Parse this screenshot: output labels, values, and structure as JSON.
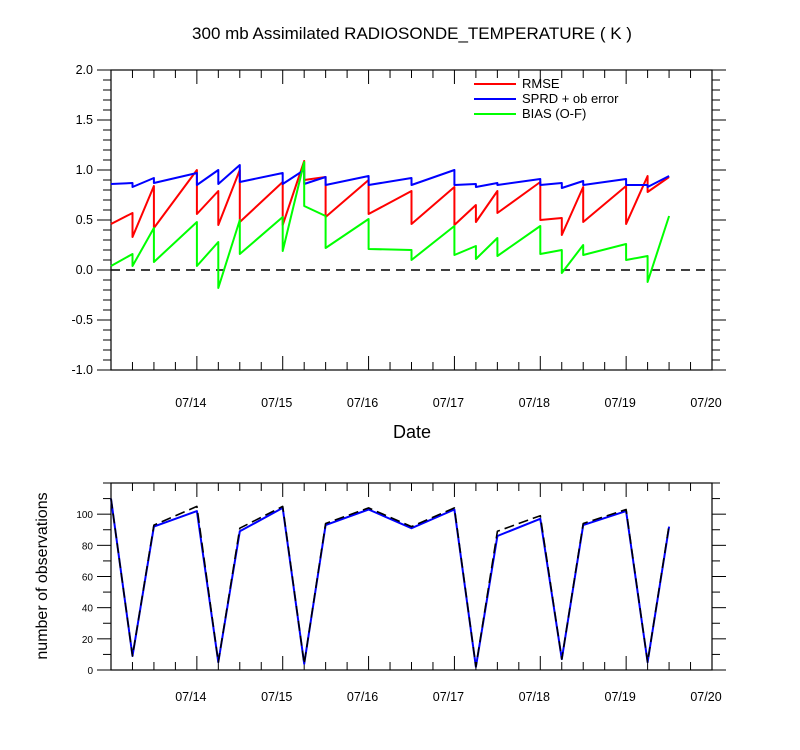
{
  "chart_data": [
    {
      "type": "line",
      "title": "300 mb Assimilated RADIOSONDE_TEMPERATURE ( K )",
      "xlabel": "Date",
      "ylabel": "",
      "x_tick_labels": [
        "07/14",
        "07/15",
        "07/16",
        "07/17",
        "07/18",
        "07/19",
        "07/20"
      ],
      "x_tick_positions_day": [
        14,
        15,
        16,
        17,
        18,
        19,
        20
      ],
      "xlim_day": [
        13.0,
        20.0
      ],
      "ylim": [
        -1.0,
        2.0
      ],
      "y_tick_labels": [
        "2.0",
        "1.5",
        "1.0",
        "0.5",
        "0.0",
        "-0.5",
        "-1.0"
      ],
      "y_tick_values": [
        2.0,
        1.5,
        1.0,
        0.5,
        0.0,
        -0.5,
        -1.0
      ],
      "zero_line": "dashed",
      "legend_position": "top-right",
      "series": [
        {
          "name": "RMSE",
          "color": "#ff0000",
          "points": [
            [
              13.0,
              0.46
            ],
            [
              13.25,
              0.57
            ],
            [
              13.25,
              0.33
            ],
            [
              13.5,
              0.84
            ],
            [
              13.5,
              0.42
            ],
            [
              14.0,
              1.0
            ],
            [
              14.0,
              0.56
            ],
            [
              14.25,
              0.79
            ],
            [
              14.25,
              0.45
            ],
            [
              14.5,
              1.0
            ],
            [
              14.5,
              0.48
            ],
            [
              15.0,
              0.88
            ],
            [
              15.0,
              0.45
            ],
            [
              15.25,
              1.09
            ],
            [
              15.25,
              0.9
            ],
            [
              15.5,
              0.93
            ],
            [
              15.5,
              0.53
            ],
            [
              16.0,
              0.9
            ],
            [
              16.0,
              0.56
            ],
            [
              16.5,
              0.79
            ],
            [
              16.5,
              0.46
            ],
            [
              17.0,
              0.83
            ],
            [
              17.0,
              0.45
            ],
            [
              17.25,
              0.65
            ],
            [
              17.25,
              0.48
            ],
            [
              17.5,
              0.79
            ],
            [
              17.5,
              0.57
            ],
            [
              18.0,
              0.88
            ],
            [
              18.0,
              0.5
            ],
            [
              18.25,
              0.52
            ],
            [
              18.25,
              0.35
            ],
            [
              18.5,
              0.83
            ],
            [
              18.5,
              0.48
            ],
            [
              19.0,
              0.84
            ],
            [
              19.0,
              0.46
            ],
            [
              19.25,
              0.94
            ],
            [
              19.25,
              0.78
            ],
            [
              19.5,
              0.93
            ]
          ]
        },
        {
          "name": "SPRD + ob error",
          "color": "#0000ff",
          "points": [
            [
              13.0,
              0.86
            ],
            [
              13.25,
              0.87
            ],
            [
              13.25,
              0.83
            ],
            [
              13.5,
              0.92
            ],
            [
              13.5,
              0.87
            ],
            [
              14.0,
              0.97
            ],
            [
              14.0,
              0.85
            ],
            [
              14.25,
              1.0
            ],
            [
              14.25,
              0.86
            ],
            [
              14.5,
              1.05
            ],
            [
              14.5,
              0.88
            ],
            [
              15.0,
              0.97
            ],
            [
              15.0,
              0.86
            ],
            [
              15.25,
              1.0
            ],
            [
              15.25,
              0.86
            ],
            [
              15.5,
              0.93
            ],
            [
              15.5,
              0.85
            ],
            [
              16.0,
              0.94
            ],
            [
              16.0,
              0.85
            ],
            [
              16.5,
              0.92
            ],
            [
              16.5,
              0.85
            ],
            [
              17.0,
              1.0
            ],
            [
              17.0,
              0.85
            ],
            [
              17.25,
              0.86
            ],
            [
              17.25,
              0.83
            ],
            [
              17.5,
              0.87
            ],
            [
              17.5,
              0.85
            ],
            [
              18.0,
              0.91
            ],
            [
              18.0,
              0.85
            ],
            [
              18.25,
              0.87
            ],
            [
              18.25,
              0.82
            ],
            [
              18.5,
              0.89
            ],
            [
              18.5,
              0.85
            ],
            [
              19.0,
              0.91
            ],
            [
              19.0,
              0.85
            ],
            [
              19.25,
              0.85
            ],
            [
              19.25,
              0.83
            ],
            [
              19.5,
              0.94
            ]
          ]
        },
        {
          "name": "BIAS (O-F)",
          "color": "#00ff00",
          "points": [
            [
              13.0,
              0.04
            ],
            [
              13.25,
              0.16
            ],
            [
              13.25,
              0.04
            ],
            [
              13.5,
              0.42
            ],
            [
              13.5,
              0.08
            ],
            [
              14.0,
              0.48
            ],
            [
              14.0,
              0.04
            ],
            [
              14.25,
              0.28
            ],
            [
              14.25,
              -0.18
            ],
            [
              14.5,
              0.5
            ],
            [
              14.5,
              0.16
            ],
            [
              15.0,
              0.53
            ],
            [
              15.0,
              0.19
            ],
            [
              15.25,
              1.08
            ],
            [
              15.25,
              0.64
            ],
            [
              15.5,
              0.54
            ],
            [
              15.5,
              0.22
            ],
            [
              16.0,
              0.51
            ],
            [
              16.0,
              0.21
            ],
            [
              16.5,
              0.2
            ],
            [
              16.5,
              0.1
            ],
            [
              17.0,
              0.44
            ],
            [
              17.0,
              0.15
            ],
            [
              17.25,
              0.24
            ],
            [
              17.25,
              0.11
            ],
            [
              17.5,
              0.32
            ],
            [
              17.5,
              0.14
            ],
            [
              18.0,
              0.44
            ],
            [
              18.0,
              0.16
            ],
            [
              18.25,
              0.2
            ],
            [
              18.25,
              -0.03
            ],
            [
              18.5,
              0.25
            ],
            [
              18.5,
              0.15
            ],
            [
              19.0,
              0.26
            ],
            [
              19.0,
              0.1
            ],
            [
              19.25,
              0.14
            ],
            [
              19.25,
              -0.12
            ],
            [
              19.5,
              0.54
            ]
          ]
        }
      ]
    },
    {
      "type": "line",
      "title": "",
      "xlabel": "",
      "ylabel": "number of observations",
      "x_tick_labels": [
        "07/14",
        "07/15",
        "07/16",
        "07/17",
        "07/18",
        "07/19",
        "07/20"
      ],
      "x_tick_positions_day": [
        14,
        15,
        16,
        17,
        18,
        19,
        20
      ],
      "xlim_day": [
        13.0,
        20.0
      ],
      "ylim": [
        0,
        120
      ],
      "y_tick_labels": [
        "100",
        "80",
        "60",
        "40",
        "20",
        "0"
      ],
      "y_tick_values": [
        100,
        80,
        60,
        40,
        20,
        0
      ],
      "series": [
        {
          "name": "",
          "color": "#0000ff",
          "style": "solid",
          "points": [
            [
              13.0,
              110
            ],
            [
              13.25,
              9
            ],
            [
              13.5,
              92
            ],
            [
              14.0,
              102
            ],
            [
              14.25,
              5
            ],
            [
              14.5,
              89
            ],
            [
              15.0,
              104
            ],
            [
              15.25,
              4
            ],
            [
              15.5,
              93
            ],
            [
              16.0,
              103
            ],
            [
              16.5,
              91
            ],
            [
              17.0,
              103
            ],
            [
              17.25,
              2
            ],
            [
              17.5,
              86
            ],
            [
              18.0,
              97
            ],
            [
              18.25,
              7
            ],
            [
              18.5,
              93
            ],
            [
              19.0,
              102
            ],
            [
              19.25,
              5
            ],
            [
              19.5,
              92
            ]
          ]
        },
        {
          "name": "",
          "color": "#000000",
          "style": "dashed",
          "points": [
            [
              13.0,
              110
            ],
            [
              13.25,
              9
            ],
            [
              13.5,
              93
            ],
            [
              14.0,
              105
            ],
            [
              14.25,
              5
            ],
            [
              14.5,
              91
            ],
            [
              15.0,
              105
            ],
            [
              15.25,
              4
            ],
            [
              15.5,
              94
            ],
            [
              16.0,
              104
            ],
            [
              16.5,
              92
            ],
            [
              17.0,
              104
            ],
            [
              17.25,
              2
            ],
            [
              17.5,
              89
            ],
            [
              18.0,
              99
            ],
            [
              18.25,
              7
            ],
            [
              18.5,
              94
            ],
            [
              19.0,
              103
            ],
            [
              19.25,
              5
            ],
            [
              19.5,
              93
            ]
          ]
        }
      ]
    }
  ]
}
